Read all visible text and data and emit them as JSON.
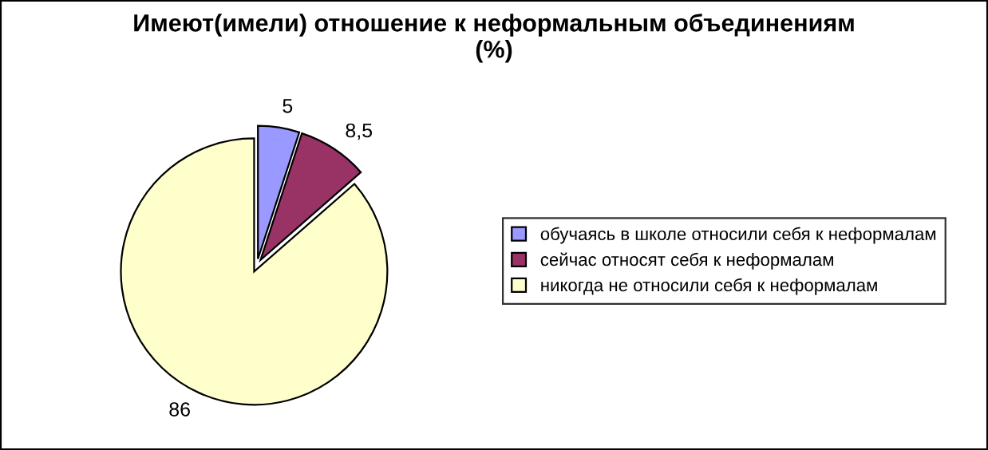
{
  "chart_data": {
    "type": "pie",
    "title": "Имеют(имели) отношение к неформальным объединениям\n(%)",
    "categories": [
      "обучаясь в школе относили себя к неформалам",
      "сейчас относят себя к неформалам",
      "никогда не относили себя к неформалам"
    ],
    "values": [
      5,
      8.5,
      86
    ],
    "value_labels": [
      "5",
      "8,5",
      "86"
    ],
    "colors": [
      "#9999ff",
      "#993366",
      "#ffffcc"
    ],
    "legend": "right"
  }
}
